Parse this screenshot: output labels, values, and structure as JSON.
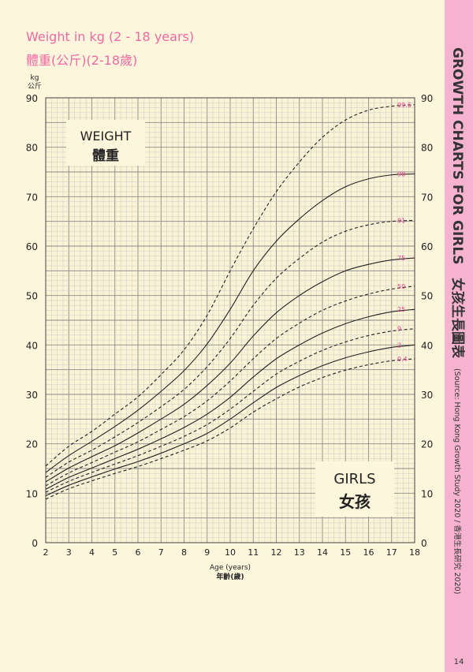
{
  "header": {
    "title_en": "Weight in kg (2 - 18 years)",
    "title_zh": "體重(公斤)(2-18歲)"
  },
  "sidebar": {
    "title": "GROWTH CHARTS FOR GIRLS",
    "title_zh": "女孩生長圖表",
    "source": "(Source: Hong Kong Growth Study 2020 / 香港生長研究 2020)",
    "page_number": "14"
  },
  "colors": {
    "background": "#fdf6dc",
    "sidebar": "#f6b3cf",
    "title_pink": "#ef6aa4",
    "label_pink": "#e0468a",
    "grid_minor": "#c6c6c6",
    "grid_major": "#8a8a8a",
    "curve": "#222222"
  },
  "chart_data": {
    "type": "line",
    "title": "Weight in kg (2 - 18 years)",
    "xlabel": "Age (years)",
    "xlabel_zh": "年齡(歲)",
    "ylabel": "kg",
    "ylabel_zh": "公斤",
    "xlim": [
      2,
      18
    ],
    "ylim": [
      0,
      90
    ],
    "x_ticks": [
      2,
      3,
      4,
      5,
      6,
      7,
      8,
      9,
      10,
      11,
      12,
      13,
      14,
      15,
      16,
      17,
      18
    ],
    "y_ticks": [
      0,
      10,
      20,
      30,
      40,
      50,
      60,
      70,
      80,
      90
    ],
    "grid": true,
    "labels": {
      "weight_en": "WEIGHT",
      "weight_zh": "體重",
      "girls_en": "GIRLS",
      "girls_zh": "女孩"
    },
    "x": [
      2,
      3,
      4,
      5,
      6,
      7,
      8,
      9,
      10,
      11,
      12,
      13,
      14,
      15,
      16,
      17,
      18
    ],
    "series": [
      {
        "name": "99.6",
        "style": "dashed",
        "values": [
          15.5,
          19.5,
          22.5,
          26.0,
          29.5,
          34.0,
          39.0,
          46.0,
          55.0,
          63.5,
          71.0,
          77.0,
          82.0,
          85.5,
          87.5,
          88.3,
          88.6
        ]
      },
      {
        "name": "98",
        "style": "solid",
        "values": [
          14.2,
          17.6,
          20.5,
          23.5,
          26.8,
          30.6,
          34.8,
          40.2,
          47.2,
          55.0,
          61.0,
          65.5,
          69.2,
          72.0,
          73.6,
          74.4,
          74.6
        ]
      },
      {
        "name": "91",
        "style": "dashed",
        "values": [
          13.2,
          16.3,
          18.7,
          21.4,
          24.3,
          27.5,
          31.0,
          35.6,
          41.3,
          48.0,
          53.5,
          57.5,
          60.8,
          63.0,
          64.3,
          65.0,
          65.2
        ]
      },
      {
        "name": "75",
        "style": "solid",
        "values": [
          12.3,
          15.1,
          17.4,
          19.6,
          22.2,
          25.0,
          28.0,
          31.8,
          36.3,
          41.8,
          46.5,
          50.0,
          52.8,
          55.0,
          56.3,
          57.2,
          57.6
        ]
      },
      {
        "name": "50",
        "style": "dashed",
        "values": [
          11.5,
          14.1,
          16.2,
          18.3,
          20.4,
          22.9,
          25.5,
          28.7,
          32.7,
          37.2,
          41.3,
          44.4,
          47.0,
          48.9,
          50.3,
          51.3,
          51.9
        ]
      },
      {
        "name": "25",
        "style": "solid",
        "values": [
          10.8,
          13.2,
          15.1,
          17.0,
          18.9,
          21.0,
          23.3,
          26.0,
          29.4,
          33.5,
          37.2,
          40.0,
          42.4,
          44.3,
          45.7,
          46.7,
          47.2
        ]
      },
      {
        "name": "9",
        "style": "dashed",
        "values": [
          10.2,
          12.4,
          14.2,
          15.9,
          17.6,
          19.5,
          21.5,
          23.9,
          27.0,
          30.6,
          34.1,
          36.7,
          38.9,
          40.6,
          41.9,
          42.8,
          43.3
        ]
      },
      {
        "name": "2",
        "style": "solid",
        "values": [
          9.5,
          11.6,
          13.3,
          14.9,
          16.4,
          18.1,
          20.0,
          22.1,
          25.0,
          28.3,
          31.4,
          33.8,
          35.8,
          37.4,
          38.6,
          39.5,
          40.0
        ]
      },
      {
        "name": "0.4",
        "style": "dashed",
        "values": [
          8.8,
          10.9,
          12.5,
          14.0,
          15.4,
          17.0,
          18.7,
          20.6,
          23.2,
          26.4,
          29.1,
          31.5,
          33.4,
          34.9,
          36.0,
          36.8,
          37.2
        ]
      }
    ]
  }
}
